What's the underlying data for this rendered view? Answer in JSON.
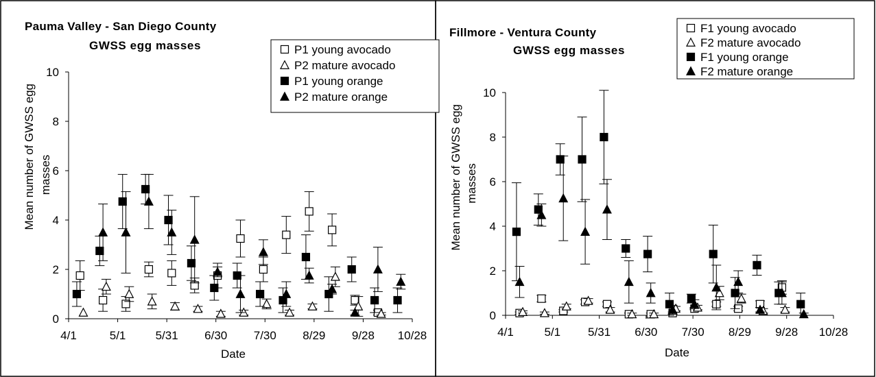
{
  "chart_data": [
    {
      "type": "scatter",
      "title": "Pauma Valley - San Diego County",
      "subtitle": "GWSS egg masses",
      "xlabel": "Date",
      "ylabel": "Mean number of GWSS egg masses",
      "ylim": [
        0,
        10
      ],
      "yticks": [
        "0",
        "2",
        "4",
        "6",
        "8",
        "10"
      ],
      "xlim": [
        0,
        210
      ],
      "xtick_values": [
        0,
        30,
        60,
        90,
        120,
        150,
        180,
        210
      ],
      "xtick_labels": [
        "4/1",
        "5/1",
        "5/31",
        "6/30",
        "7/30",
        "8/29",
        "9/28",
        "10/28"
      ],
      "legend_position": "top-right",
      "grid": false,
      "series": [
        {
          "name": "P1 young avocado",
          "marker": "square-open",
          "points": [
            [
              7,
              1.75,
              0.6
            ],
            [
              21,
              0.75,
              0.45
            ],
            [
              35,
              0.6,
              0.3
            ],
            [
              49,
              2.0,
              0.3
            ],
            [
              63,
              1.85,
              0.5
            ],
            [
              77,
              1.35,
              0.3
            ],
            [
              91,
              1.75,
              0.5
            ],
            [
              105,
              3.25,
              0.75
            ],
            [
              119,
              2.0,
              0.5
            ],
            [
              133,
              3.4,
              0.75
            ],
            [
              147,
              4.35,
              0.8
            ],
            [
              161,
              3.6,
              0.65
            ],
            [
              175,
              0.75,
              0.2
            ],
            [
              189,
              0.25,
              0.1
            ]
          ]
        },
        {
          "name": "P2 mature avocado",
          "marker": "triangle-open",
          "points": [
            [
              9,
              0.25,
              0
            ],
            [
              23,
              1.3,
              0.3
            ],
            [
              37,
              1.0,
              0.3
            ],
            [
              51,
              0.7,
              0.3
            ],
            [
              65,
              0.5,
              0.15
            ],
            [
              79,
              0.4,
              0.1
            ],
            [
              93,
              0.2,
              0.1
            ],
            [
              107,
              0.25,
              0.1
            ],
            [
              121,
              0.6,
              0.2
            ],
            [
              135,
              0.25,
              0.1
            ],
            [
              149,
              0.5,
              0.1
            ],
            [
              163,
              1.7,
              0.4
            ],
            [
              177,
              0.5,
              0.4
            ],
            [
              191,
              0.2,
              0.05
            ]
          ]
        },
        {
          "name": "P1 young orange",
          "marker": "square-filled",
          "points": [
            [
              5,
              1.0,
              0.5
            ],
            [
              19,
              2.75,
              0.6
            ],
            [
              33,
              4.75,
              1.1
            ],
            [
              47,
              5.25,
              0.6
            ],
            [
              61,
              4.0,
              1.0
            ],
            [
              75,
              2.25,
              0.7
            ],
            [
              89,
              1.25,
              0.5
            ],
            [
              103,
              1.75,
              0.5
            ],
            [
              117,
              1.0,
              0.5
            ],
            [
              131,
              0.75,
              0.5
            ],
            [
              145,
              2.5,
              0.9
            ],
            [
              159,
              1.0,
              0.7
            ],
            [
              173,
              2.0,
              0.5
            ],
            [
              187,
              0.75,
              0.5
            ],
            [
              201,
              0.75,
              0.5
            ]
          ]
        },
        {
          "name": "P2 mature orange",
          "marker": "triangle-filled",
          "points": [
            [
              21,
              3.5,
              1.15
            ],
            [
              35,
              3.5,
              1.65
            ],
            [
              49,
              4.75,
              1.1
            ],
            [
              63,
              3.5,
              0.9
            ],
            [
              77,
              3.2,
              1.75
            ],
            [
              91,
              1.9,
              0.2
            ],
            [
              105,
              1.0,
              0.75
            ],
            [
              119,
              2.7,
              0.5
            ],
            [
              133,
              1.0,
              0.5
            ],
            [
              147,
              1.75,
              0.3
            ],
            [
              161,
              1.2,
              0.2
            ],
            [
              175,
              0.25,
              0.1
            ],
            [
              189,
              2.0,
              0.9
            ],
            [
              203,
              1.5,
              0.3
            ]
          ]
        }
      ]
    },
    {
      "type": "scatter",
      "title": "Fillmore - Ventura County",
      "subtitle": "GWSS egg masses",
      "xlabel": "Date",
      "ylabel": "Mean number of GWSS egg masses",
      "ylim": [
        0,
        10
      ],
      "yticks": [
        "0",
        "2",
        "4",
        "6",
        "8",
        "10"
      ],
      "xlim": [
        0,
        210
      ],
      "xtick_values": [
        0,
        30,
        60,
        90,
        120,
        150,
        180,
        210
      ],
      "xtick_labels": [
        "4/1",
        "5/1",
        "5/31",
        "6/30",
        "7/30",
        "8/29",
        "9/28",
        "10/28"
      ],
      "legend_position": "top-right",
      "grid": false,
      "series": [
        {
          "name": "F1 young avocado",
          "marker": "square-open",
          "points": [
            [
              9,
              0.1,
              0.05
            ],
            [
              23,
              0.75,
              0.15
            ],
            [
              37,
              0.2,
              0.05
            ],
            [
              51,
              0.6,
              0.1
            ],
            [
              65,
              0.5,
              0.1
            ],
            [
              79,
              0.05,
              0.05
            ],
            [
              93,
              0.05,
              0.05
            ],
            [
              107,
              0.1,
              0.05
            ],
            [
              121,
              0.3,
              0.05
            ],
            [
              135,
              0.5,
              0.1
            ],
            [
              149,
              0.3,
              0.1
            ],
            [
              163,
              0.5,
              0.15
            ],
            [
              177,
              1.25,
              0.3
            ]
          ]
        },
        {
          "name": "F2 mature avocado",
          "marker": "triangle-open",
          "points": [
            [
              11,
              0.15,
              0.05
            ],
            [
              25,
              0.1,
              0.05
            ],
            [
              39,
              0.4,
              0.1
            ],
            [
              53,
              0.65,
              0.1
            ],
            [
              67,
              0.25,
              0.1
            ],
            [
              81,
              0.05,
              0.05
            ],
            [
              95,
              0.05,
              0.05
            ],
            [
              109,
              0.3,
              0.1
            ],
            [
              123,
              0.35,
              0.1
            ],
            [
              137,
              1.0,
              0.3
            ],
            [
              151,
              0.75,
              0.2
            ],
            [
              165,
              0.2,
              0.1
            ],
            [
              179,
              0.25,
              0.1
            ]
          ]
        },
        {
          "name": "F1 young orange",
          "marker": "square-filled",
          "points": [
            [
              7,
              3.75,
              2.2
            ],
            [
              21,
              4.75,
              0.7
            ],
            [
              35,
              7.0,
              0.7
            ],
            [
              49,
              7.0,
              1.9
            ],
            [
              63,
              8.0,
              2.1
            ],
            [
              77,
              3.0,
              0.4
            ],
            [
              91,
              2.75,
              0.8
            ],
            [
              105,
              0.5,
              0.5
            ],
            [
              119,
              0.75,
              0.2
            ],
            [
              133,
              2.75,
              1.3
            ],
            [
              147,
              1.0,
              0.7
            ],
            [
              161,
              2.25,
              0.45
            ],
            [
              175,
              1.0,
              0.5
            ],
            [
              189,
              0.5,
              0.5
            ]
          ]
        },
        {
          "name": "F2 mature orange",
          "marker": "triangle-filled",
          "points": [
            [
              9,
              1.5,
              0.7
            ],
            [
              23,
              4.5,
              0.5
            ],
            [
              37,
              5.25,
              1.9
            ],
            [
              51,
              3.75,
              1.45
            ],
            [
              65,
              4.75,
              1.35
            ],
            [
              79,
              1.5,
              0.95
            ],
            [
              93,
              1.0,
              0.45
            ],
            [
              107,
              0.25,
              0.2
            ],
            [
              121,
              0.5,
              0.2
            ],
            [
              135,
              1.25,
              1.0
            ],
            [
              149,
              1.5,
              0.5
            ],
            [
              163,
              0.25,
              0.1
            ],
            [
              177,
              1.0,
              0.5
            ],
            [
              191,
              0.05,
              0.05
            ]
          ]
        }
      ]
    }
  ]
}
